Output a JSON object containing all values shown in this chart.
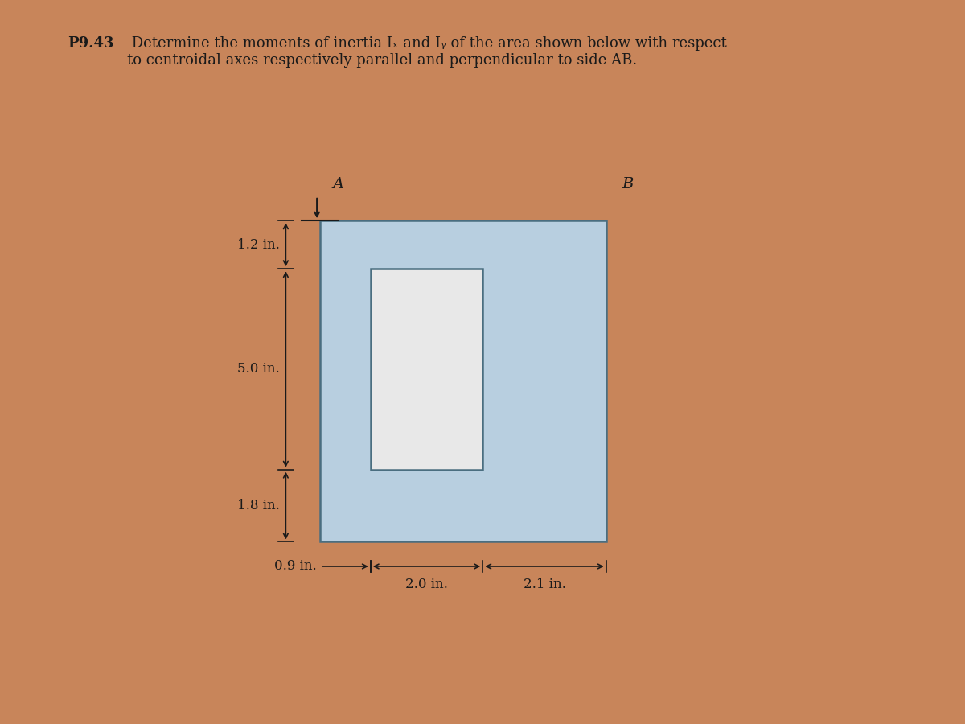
{
  "title_bold": "P9.43",
  "title_rest": " Determine the moments of inertia Iₓ and Iᵧ of the area shown below with respect\nto centroidal axes respectively parallel and perpendicular to side AB.",
  "bg_color": "#c8855a",
  "shape_fill": "#b8cfe0",
  "shape_edge": "#4a6e80",
  "shape_linewidth": 1.8,
  "inner_fill": "#e8e8e8",
  "dim_1_2": "1.2 in.",
  "dim_5_0": "5.0 in.",
  "dim_1_8": "1.8 in.",
  "dim_0_9": "0.9 in.",
  "dim_2_0": "2.0 in.",
  "dim_2_1": "2.1 in.",
  "label_A": "A",
  "label_B": "B",
  "arrow_color": "#1a1a1a",
  "text_color": "#1a1a1a",
  "dim_fontsize": 12,
  "label_fontsize": 14,
  "title_fontsize": 13
}
